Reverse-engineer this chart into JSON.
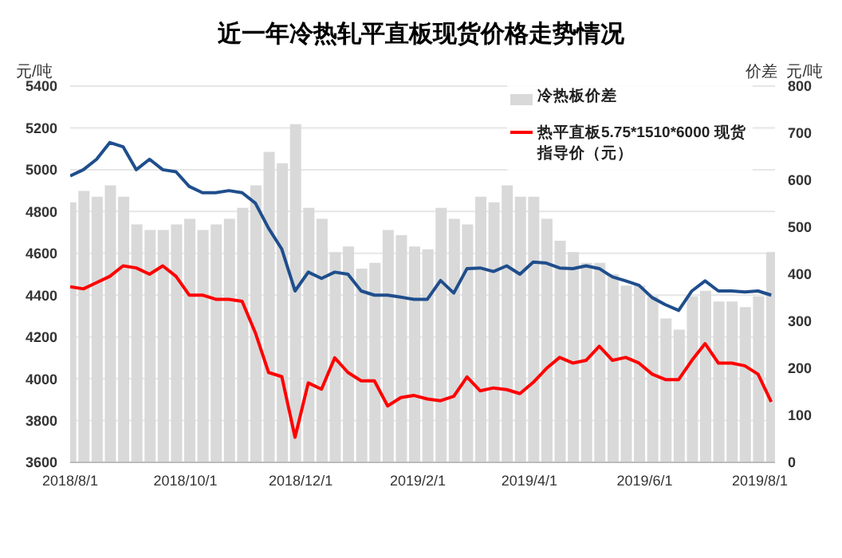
{
  "chart_data": {
    "type": "line",
    "title": "近一年冷热轧平直板现货价格走势情况",
    "ylabel": "元/吨",
    "y2label": "价差  元/吨",
    "x": [
      "2018-08-01",
      "2018-08-08",
      "2018-08-15",
      "2018-08-22",
      "2018-08-29",
      "2018-09-05",
      "2018-09-12",
      "2018-09-19",
      "2018-09-26",
      "2018-10-03",
      "2018-10-10",
      "2018-10-17",
      "2018-10-24",
      "2018-10-31",
      "2018-11-07",
      "2018-11-14",
      "2018-11-21",
      "2018-11-28",
      "2018-12-05",
      "2018-12-12",
      "2018-12-19",
      "2018-12-26",
      "2019-01-02",
      "2019-01-09",
      "2019-01-16",
      "2019-01-23",
      "2019-01-30",
      "2019-02-06",
      "2019-02-13",
      "2019-02-20",
      "2019-02-27",
      "2019-03-06",
      "2019-03-13",
      "2019-03-20",
      "2019-03-27",
      "2019-04-03",
      "2019-04-10",
      "2019-04-17",
      "2019-04-24",
      "2019-05-01",
      "2019-05-08",
      "2019-05-15",
      "2019-05-22",
      "2019-05-29",
      "2019-06-05",
      "2019-06-12",
      "2019-06-19",
      "2019-06-26",
      "2019-07-03",
      "2019-07-10",
      "2019-07-17",
      "2019-07-24",
      "2019-07-31",
      "2019-08-07"
    ],
    "series": [
      {
        "name": "冷热板价差",
        "type": "bar",
        "axis": "y2",
        "color": "#d9d9d9",
        "values": [
          553,
          577,
          565,
          589,
          565,
          506,
          494,
          494,
          506,
          518,
          494,
          506,
          518,
          541,
          589,
          660,
          636,
          719,
          541,
          518,
          447,
          459,
          412,
          424,
          494,
          483,
          459,
          453,
          541,
          518,
          506,
          565,
          553,
          589,
          565,
          565,
          518,
          471,
          447,
          424,
          424,
          400,
          376,
          376,
          353,
          306,
          282,
          353,
          365,
          342,
          342,
          330,
          353,
          447
        ]
      },
      {
        "color": "#1f4e8c",
        "values": [
          4970,
          5000,
          5050,
          5130,
          5110,
          5000,
          5050,
          5000,
          4990,
          4920,
          4890,
          4890,
          4900,
          4890,
          4840,
          4720,
          4620,
          4420,
          4510,
          4480,
          4510,
          4500,
          4420,
          4400,
          4400,
          4390,
          4380,
          4380,
          4470,
          4410,
          4527,
          4530,
          4513,
          4540,
          4500,
          4558,
          4553,
          4530,
          4527,
          4540,
          4527,
          4487,
          4468,
          4447,
          4388,
          4354,
          4327,
          4420,
          4468,
          4420,
          4420,
          4415,
          4420,
          4400
        ]
      },
      {
        "name": "热平直板5.75*1510*6000 现货指导价（元）",
        "color": "#ff0000",
        "values": [
          4440,
          4430,
          4460,
          4490,
          4540,
          4530,
          4500,
          4540,
          4490,
          4400,
          4400,
          4380,
          4380,
          4370,
          4220,
          4030,
          4010,
          3720,
          3980,
          3950,
          4100,
          4030,
          3990,
          3990,
          3870,
          3910,
          3920,
          3903,
          3895,
          3916,
          4009,
          3942,
          3956,
          3948,
          3929,
          3982,
          4049,
          4102,
          4075,
          4088,
          4155,
          4088,
          4102,
          4075,
          4022,
          3996,
          3996,
          4088,
          4168,
          4075,
          4075,
          4062,
          4022,
          3889
        ]
      }
    ],
    "xlim": [
      "2018-08-01",
      "2019-08-09"
    ],
    "xticks": [
      {
        "value": "2018-08-01",
        "label": "2018/8/1"
      },
      {
        "value": "2018-10-01",
        "label": "2018/10/1"
      },
      {
        "value": "2018-12-01",
        "label": "2018/12/1"
      },
      {
        "value": "2019-02-01",
        "label": "2019/2/1"
      },
      {
        "value": "2019-04-01",
        "label": "2019/4/1"
      },
      {
        "value": "2019-06-01",
        "label": "2019/6/1"
      },
      {
        "value": "2019-08-01",
        "label": "2019/8/1"
      }
    ],
    "ylim": [
      3600,
      5400
    ],
    "yticks": [
      3600,
      3800,
      4000,
      4200,
      4400,
      4600,
      4800,
      5000,
      5200,
      5400
    ],
    "y2lim": [
      0,
      800
    ],
    "y2ticks": [
      0,
      100,
      200,
      300,
      400,
      500,
      600,
      700,
      800
    ],
    "grid": "y",
    "legend": "top right",
    "marker": "none",
    "line_style": "solid"
  }
}
